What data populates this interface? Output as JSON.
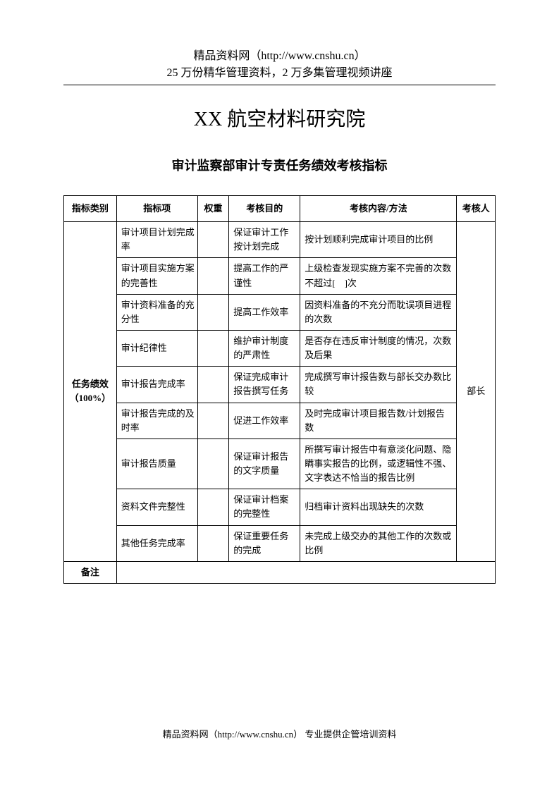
{
  "header": {
    "line1": "精品资料网（http://www.cnshu.cn）",
    "line2": "25 万份精华管理资料，2 万多集管理视频讲座"
  },
  "page_title": "XX 航空材料研究院",
  "subtitle": "审计监察部审计专责任务绩效考核指标",
  "table": {
    "headers": {
      "category": "指标类别",
      "item": "指标项",
      "weight": "权重",
      "purpose": "考核目的",
      "content": "考核内容/方法",
      "person": "考核人"
    },
    "category_label": "任务绩效（100%）",
    "person_label": "部长",
    "rows": [
      {
        "item": "审计项目计划完成率",
        "purpose": "保证审计工作按计划完成",
        "content": "按计划顺利完成审计项目的比例"
      },
      {
        "item": "审计项目实施方案的完善性",
        "purpose": "提高工作的严谨性",
        "content": "上级检查发现实施方案不完善的次数不超过[　]次"
      },
      {
        "item": "审计资料准备的充分性",
        "purpose": "提高工作效率",
        "content": "因资料准备的不充分而耽误项目进程的次数"
      },
      {
        "item": "审计纪律性",
        "purpose": "维护审计制度的严肃性",
        "content": "是否存在违反审计制度的情况，次数及后果"
      },
      {
        "item": "审计报告完成率",
        "purpose": "保证完成审计报告撰写任务",
        "content": "完成撰写审计报告数与部长交办数比较"
      },
      {
        "item": "审计报告完成的及时率",
        "purpose": "促进工作效率",
        "content": "及时完成审计项目报告数/计划报告数"
      },
      {
        "item": "审计报告质量",
        "purpose": "保证审计报告的文字质量",
        "content": "所撰写审计报告中有意淡化问题、隐瞒事实报告的比例，或逻辑性不强、文字表达不恰当的报告比例"
      },
      {
        "item": "资料文件完整性",
        "purpose": "保证审计档案的完整性",
        "content": "归档审计资料出现缺失的次数"
      },
      {
        "item": "其他任务完成率",
        "purpose": "保证重要任务的完成",
        "content": "未完成上级交办的其他工作的次数或比例"
      }
    ],
    "remark_label": "备注"
  },
  "footer": "精品资料网（http://www.cnshu.cn）  专业提供企管培训资料"
}
